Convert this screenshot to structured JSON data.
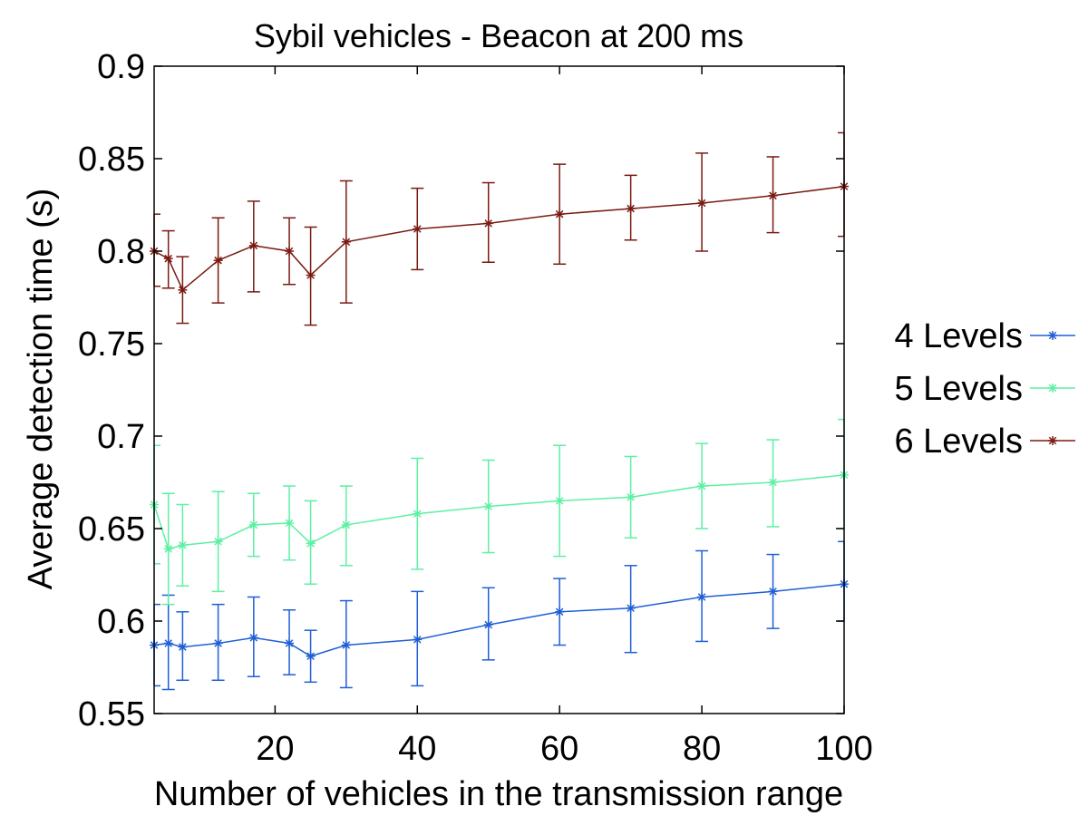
{
  "chart_data": {
    "type": "line",
    "title": "Sybil vehicles - Beacon at 200 ms",
    "xlabel": "Number of vehicles in the transmission range",
    "ylabel": "Average detection time (s)",
    "xlim": [
      3,
      100
    ],
    "ylim": [
      0.55,
      0.9
    ],
    "xticks": [
      20,
      40,
      60,
      80,
      100
    ],
    "yticks": [
      0.55,
      0.6,
      0.65,
      0.7,
      0.75,
      0.8,
      0.85,
      0.9
    ],
    "grid": false,
    "legend_position": "right",
    "marker": "asterisk",
    "x": [
      3,
      5,
      7,
      12,
      17,
      22,
      25,
      30,
      40,
      50,
      60,
      70,
      80,
      90,
      100
    ],
    "series": [
      {
        "name": "4 Levels",
        "color": "#1f5fd6",
        "values": [
          0.587,
          0.588,
          0.586,
          0.588,
          0.591,
          0.588,
          0.581,
          0.587,
          0.59,
          0.598,
          0.605,
          0.607,
          0.613,
          0.616,
          0.62
        ],
        "err_low": [
          0.565,
          0.563,
          0.568,
          0.568,
          0.57,
          0.571,
          0.567,
          0.564,
          0.565,
          0.579,
          0.587,
          0.583,
          0.589,
          0.596,
          0.6
        ],
        "err_high": [
          0.609,
          0.614,
          0.605,
          0.609,
          0.613,
          0.606,
          0.595,
          0.611,
          0.616,
          0.618,
          0.623,
          0.63,
          0.638,
          0.636,
          0.643
        ]
      },
      {
        "name": "5 Levels",
        "color": "#5df0a3",
        "values": [
          0.663,
          0.639,
          0.641,
          0.643,
          0.652,
          0.653,
          0.642,
          0.652,
          0.658,
          0.662,
          0.665,
          0.667,
          0.673,
          0.675,
          0.679
        ],
        "err_low": [
          0.631,
          0.609,
          0.619,
          0.616,
          0.635,
          0.633,
          0.62,
          0.63,
          0.628,
          0.637,
          0.635,
          0.645,
          0.65,
          0.651,
          0.65
        ],
        "err_high": [
          0.695,
          0.669,
          0.663,
          0.67,
          0.669,
          0.673,
          0.665,
          0.673,
          0.688,
          0.687,
          0.695,
          0.689,
          0.696,
          0.698,
          0.709
        ]
      },
      {
        "name": "6 Levels",
        "color": "#7a1a12",
        "values": [
          0.8,
          0.796,
          0.779,
          0.795,
          0.803,
          0.8,
          0.787,
          0.805,
          0.812,
          0.815,
          0.82,
          0.823,
          0.826,
          0.83,
          0.835
        ],
        "err_low": [
          0.781,
          0.78,
          0.761,
          0.772,
          0.778,
          0.782,
          0.76,
          0.772,
          0.79,
          0.794,
          0.793,
          0.806,
          0.8,
          0.81,
          0.808
        ],
        "err_high": [
          0.82,
          0.811,
          0.797,
          0.818,
          0.827,
          0.818,
          0.813,
          0.838,
          0.834,
          0.837,
          0.847,
          0.841,
          0.853,
          0.851,
          0.864
        ]
      }
    ]
  }
}
